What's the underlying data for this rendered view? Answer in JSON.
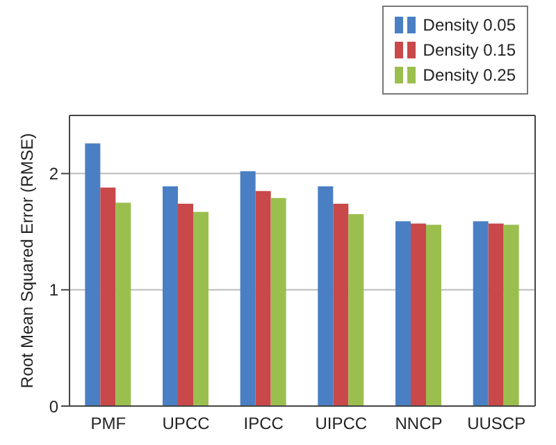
{
  "chart_data": {
    "type": "bar",
    "ylabel": "Root Mean Squared Error (RMSE)",
    "categories": [
      "PMF",
      "UPCC",
      "IPCC",
      "UIPCC",
      "NNCP",
      "UUSCP"
    ],
    "series": [
      {
        "name": "Density 0.05",
        "color": "#4a7fc4",
        "values": [
          2.26,
          1.89,
          2.02,
          1.89,
          1.59,
          1.59
        ]
      },
      {
        "name": "Density 0.15",
        "color": "#c9484a",
        "values": [
          1.88,
          1.74,
          1.85,
          1.74,
          1.57,
          1.57
        ]
      },
      {
        "name": "Density 0.25",
        "color": "#9bbf4f",
        "values": [
          1.75,
          1.67,
          1.79,
          1.65,
          1.56,
          1.56
        ]
      }
    ],
    "ylim": [
      0,
      2.5
    ],
    "yticks": [
      0,
      1,
      2
    ],
    "grid": "y",
    "legend": "top right"
  }
}
